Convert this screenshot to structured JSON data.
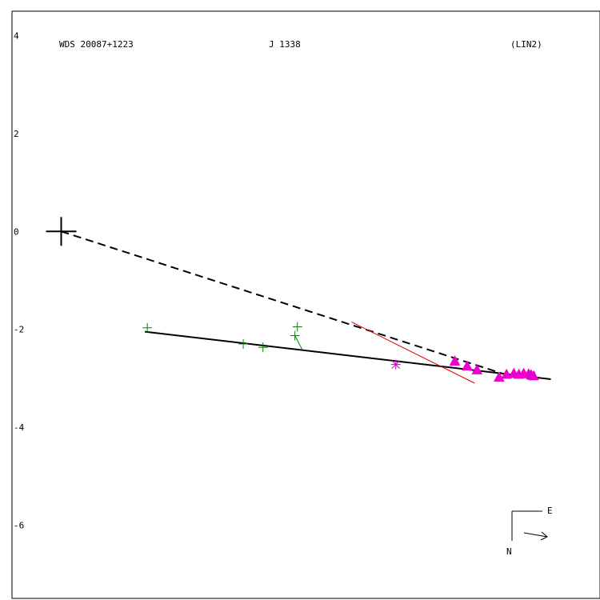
{
  "header": {
    "wds_id": "WDS 20087+1223",
    "discoverer": "J  1338",
    "code": "(LIN2)"
  },
  "chart_data": {
    "type": "scatter",
    "title": "",
    "xlabel": "",
    "ylabel": "",
    "xlim": [
      -2.0,
      21.9
    ],
    "ylim": [
      -7.5,
      4.5
    ],
    "yticks": [
      {
        "value": 4,
        "label": "4"
      },
      {
        "value": 2,
        "label": "2"
      },
      {
        "value": 0,
        "label": "0"
      },
      {
        "value": -2,
        "label": "-2"
      },
      {
        "value": -4,
        "label": "-4"
      },
      {
        "value": -6,
        "label": "-6"
      }
    ],
    "primary": {
      "x": 0,
      "y": 0
    },
    "lines": [
      {
        "name": "linear-fit",
        "style": "solid",
        "color": "#000000",
        "points": [
          [
            3.4,
            -2.05
          ],
          [
            19.9,
            -3.02
          ]
        ]
      },
      {
        "name": "line-to-primary",
        "style": "dashed",
        "color": "#000000",
        "points": [
          [
            0,
            0
          ],
          [
            18.4,
            -2.98
          ]
        ]
      },
      {
        "name": "red-reference",
        "style": "solid",
        "color": "#dd0000",
        "points": [
          [
            11.8,
            -1.85
          ],
          [
            16.8,
            -3.1
          ]
        ]
      },
      {
        "name": "green-connector",
        "style": "solid",
        "color": "#008800",
        "points": [
          [
            9.5,
            -2.13
          ],
          [
            9.8,
            -2.42
          ]
        ]
      }
    ],
    "green_plus": [
      [
        3.5,
        -1.97
      ],
      [
        7.4,
        -2.3
      ],
      [
        8.2,
        -2.37
      ],
      [
        9.6,
        -1.95
      ],
      [
        9.5,
        -2.13
      ]
    ],
    "magenta_star": [
      [
        13.6,
        -2.72
      ],
      [
        19.1,
        -2.95
      ]
    ],
    "magenta_triangle": [
      [
        16.0,
        -2.65
      ],
      [
        16.5,
        -2.75
      ],
      [
        16.9,
        -2.83
      ],
      [
        17.8,
        -2.98
      ],
      [
        18.1,
        -2.92
      ],
      [
        18.4,
        -2.9
      ],
      [
        18.6,
        -2.92
      ],
      [
        18.8,
        -2.9
      ],
      [
        19.0,
        -2.91
      ],
      [
        19.1,
        -2.93
      ],
      [
        19.2,
        -2.95
      ]
    ],
    "orientation": {
      "east": "E",
      "north": "N"
    }
  }
}
